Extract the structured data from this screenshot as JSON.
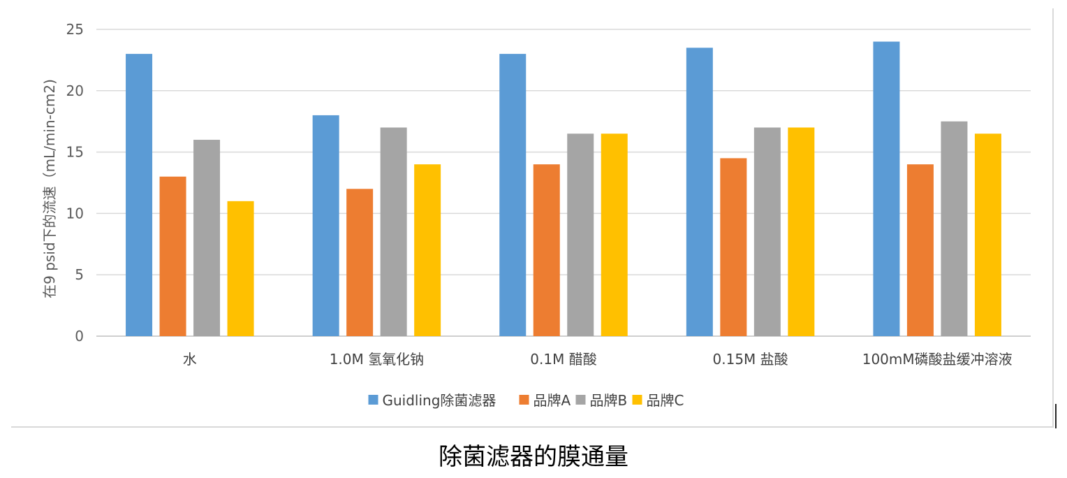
{
  "caption": "除菌滤器的膜通量",
  "chart_data": {
    "type": "bar",
    "title": "",
    "xlabel": "",
    "ylabel": "在9 psid下的流速（mL/min-cm2)",
    "ylim": [
      0,
      25
    ],
    "yticks": [
      0,
      5,
      10,
      15,
      20,
      25
    ],
    "grid": true,
    "legend_position": "bottom",
    "categories": [
      "水",
      "1.0M 氢氧化钠",
      "0.1M 醋酸",
      "0.15M 盐酸",
      "100mM磷酸盐缓冲溶液"
    ],
    "series": [
      {
        "name": "Guidling除菌滤器",
        "color": "#5b9bd5",
        "values": [
          23,
          18,
          23,
          23.5,
          24
        ]
      },
      {
        "name": "品牌A",
        "color": "#ed7d31",
        "values": [
          13,
          12,
          14,
          14.5,
          14
        ]
      },
      {
        "name": "品牌B",
        "color": "#a5a5a5",
        "values": [
          16,
          17,
          16.5,
          17,
          17.5
        ]
      },
      {
        "name": "品牌C",
        "color": "#ffc000",
        "values": [
          11,
          14,
          16.5,
          17,
          16.5
        ]
      }
    ]
  }
}
